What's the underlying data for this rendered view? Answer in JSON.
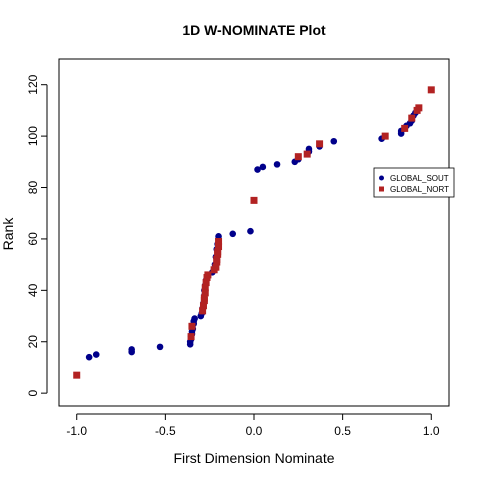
{
  "chart_data": {
    "type": "scatter",
    "title": "1D W-NOMINATE Plot",
    "xlabel": "First Dimension Nominate",
    "ylabel": "Rank",
    "xlim": [
      -1.1,
      1.1
    ],
    "ylim": [
      -5,
      130
    ],
    "x_ticks": [
      -1.0,
      -0.5,
      0.0,
      0.5,
      1.0
    ],
    "x_tick_labels": [
      "-1.0",
      "-0.5",
      "0.0",
      "0.5",
      "1.0"
    ],
    "y_ticks": [
      0,
      20,
      40,
      60,
      80,
      100,
      120
    ],
    "y_tick_labels": [
      "0",
      "20",
      "40",
      "60",
      "80",
      "100",
      "120"
    ],
    "grid": false,
    "legend_position": "right",
    "series": [
      {
        "name": "GLOBAL_SOUTH",
        "legend_label": "GLOBAL_SOUT",
        "color": "#00008B",
        "marker": "circle",
        "points": [
          [
            -0.93,
            14
          ],
          [
            -0.89,
            15
          ],
          [
            -0.69,
            16
          ],
          [
            -0.69,
            17
          ],
          [
            -0.53,
            18
          ],
          [
            -0.36,
            19
          ],
          [
            -0.36,
            20
          ],
          [
            -0.355,
            21
          ],
          [
            -0.355,
            22
          ],
          [
            -0.35,
            23
          ],
          [
            -0.35,
            24
          ],
          [
            -0.345,
            25
          ],
          [
            -0.34,
            27
          ],
          [
            -0.34,
            28
          ],
          [
            -0.335,
            29
          ],
          [
            -0.3,
            30
          ],
          [
            -0.295,
            31
          ],
          [
            -0.29,
            33
          ],
          [
            -0.285,
            35
          ],
          [
            -0.28,
            38
          ],
          [
            -0.28,
            40
          ],
          [
            -0.275,
            42
          ],
          [
            -0.27,
            44
          ],
          [
            -0.235,
            47
          ],
          [
            -0.22,
            50
          ],
          [
            -0.215,
            53
          ],
          [
            -0.21,
            56
          ],
          [
            -0.205,
            58
          ],
          [
            -0.2,
            60
          ],
          [
            -0.2,
            61
          ],
          [
            -0.12,
            62
          ],
          [
            -0.02,
            63
          ],
          [
            0.02,
            87
          ],
          [
            0.05,
            88
          ],
          [
            0.13,
            89
          ],
          [
            0.23,
            90
          ],
          [
            0.25,
            91
          ],
          [
            0.31,
            94
          ],
          [
            0.31,
            95
          ],
          [
            0.37,
            96
          ],
          [
            0.45,
            98
          ],
          [
            0.72,
            99
          ],
          [
            0.83,
            101
          ],
          [
            0.83,
            102
          ],
          [
            0.85,
            103
          ],
          [
            0.86,
            104
          ],
          [
            0.88,
            105
          ],
          [
            0.89,
            106
          ],
          [
            0.9,
            108
          ],
          [
            0.91,
            109
          ]
        ]
      },
      {
        "name": "GLOBAL_NORTH",
        "legend_label": "GLOBAL_NORT",
        "color": "#B22222",
        "marker": "square",
        "points": [
          [
            -1.0,
            7
          ],
          [
            -0.355,
            22
          ],
          [
            -0.35,
            26
          ],
          [
            -0.29,
            32
          ],
          [
            -0.285,
            34
          ],
          [
            -0.28,
            36
          ],
          [
            -0.28,
            37
          ],
          [
            -0.275,
            39
          ],
          [
            -0.275,
            41
          ],
          [
            -0.27,
            43
          ],
          [
            -0.265,
            45
          ],
          [
            -0.26,
            46
          ],
          [
            -0.225,
            48
          ],
          [
            -0.215,
            49
          ],
          [
            -0.21,
            51
          ],
          [
            -0.21,
            52
          ],
          [
            -0.205,
            54
          ],
          [
            -0.205,
            55
          ],
          [
            -0.2,
            57
          ],
          [
            -0.2,
            59
          ],
          [
            0.0,
            75
          ],
          [
            0.25,
            92
          ],
          [
            0.3,
            93
          ],
          [
            0.37,
            97
          ],
          [
            0.74,
            100
          ],
          [
            0.85,
            103
          ],
          [
            0.89,
            107
          ],
          [
            0.92,
            110
          ],
          [
            0.93,
            111
          ],
          [
            1.0,
            118
          ]
        ]
      }
    ]
  }
}
